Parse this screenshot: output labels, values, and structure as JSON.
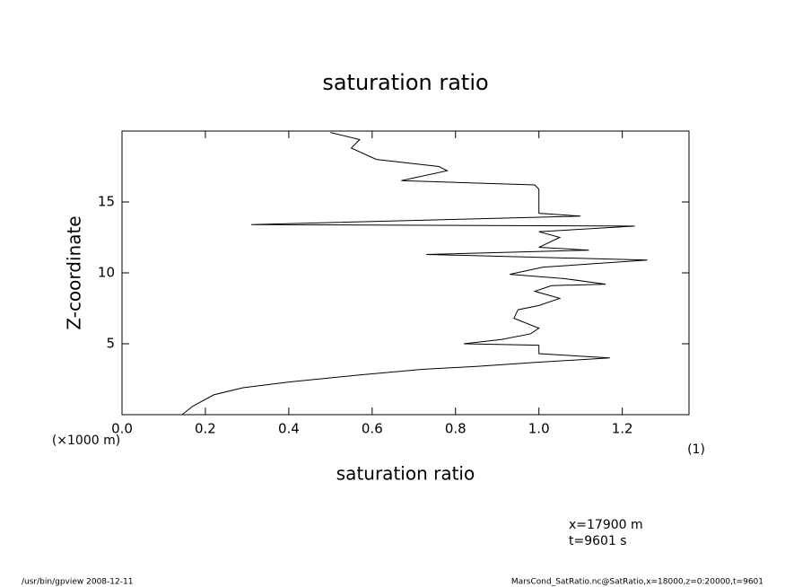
{
  "chart_data": {
    "type": "line",
    "title": "saturation ratio",
    "x_label": "saturation ratio",
    "x_unit": "(1)",
    "y_label": "Z-coordinate",
    "y_unit": "(×1000 m)",
    "annotations": [
      "x=17900 m",
      "t=9601 s"
    ],
    "footer_left": "/usr/bin/gpview  2008-12-11",
    "footer_right": "MarsCond_SatRatio.nc@SatRatio,x=18000,z=0:20000,t=9601",
    "color": "#000000",
    "xlim": [
      0,
      1.36
    ],
    "xticks": [
      {
        "value": 0,
        "label": "0.0"
      },
      0.2,
      0.4,
      0.6,
      0.8,
      {
        "value": 1,
        "label": "1.0"
      },
      1.2
    ],
    "ylim": [
      0,
      20
    ],
    "yticks": [
      5,
      10,
      15
    ],
    "y": [
      0,
      0.6,
      1.4,
      1.9,
      2.3,
      2.8,
      3.2,
      3.4,
      3.7,
      4.0,
      4.3,
      4.9,
      5.0,
      5.3,
      5.7,
      6.1,
      6.8,
      7.4,
      7.7,
      8.2,
      8.7,
      9.1,
      9.2,
      9.6,
      9.9,
      10.4,
      10.9,
      11.3,
      11.6,
      11.8,
      12.5,
      12.9,
      13.3,
      13.4,
      14.0,
      14.2,
      15.9,
      16.2,
      16.5,
      17.2,
      17.5,
      18.0,
      18.8,
      19.4,
      19.9
    ],
    "values": [
      0.144,
      0.17,
      0.22,
      0.29,
      0.4,
      0.57,
      0.72,
      0.85,
      1.0,
      1.17,
      1.0,
      1.0,
      0.82,
      0.91,
      0.98,
      1.0,
      0.94,
      0.95,
      1.0,
      1.05,
      0.99,
      1.03,
      1.16,
      1.06,
      0.93,
      1.01,
      1.26,
      0.73,
      1.12,
      1.0,
      1.05,
      1.0,
      1.23,
      0.31,
      1.1,
      1.0,
      1.0,
      0.99,
      0.67,
      0.78,
      0.76,
      0.61,
      0.55,
      0.57,
      0.5
    ]
  }
}
